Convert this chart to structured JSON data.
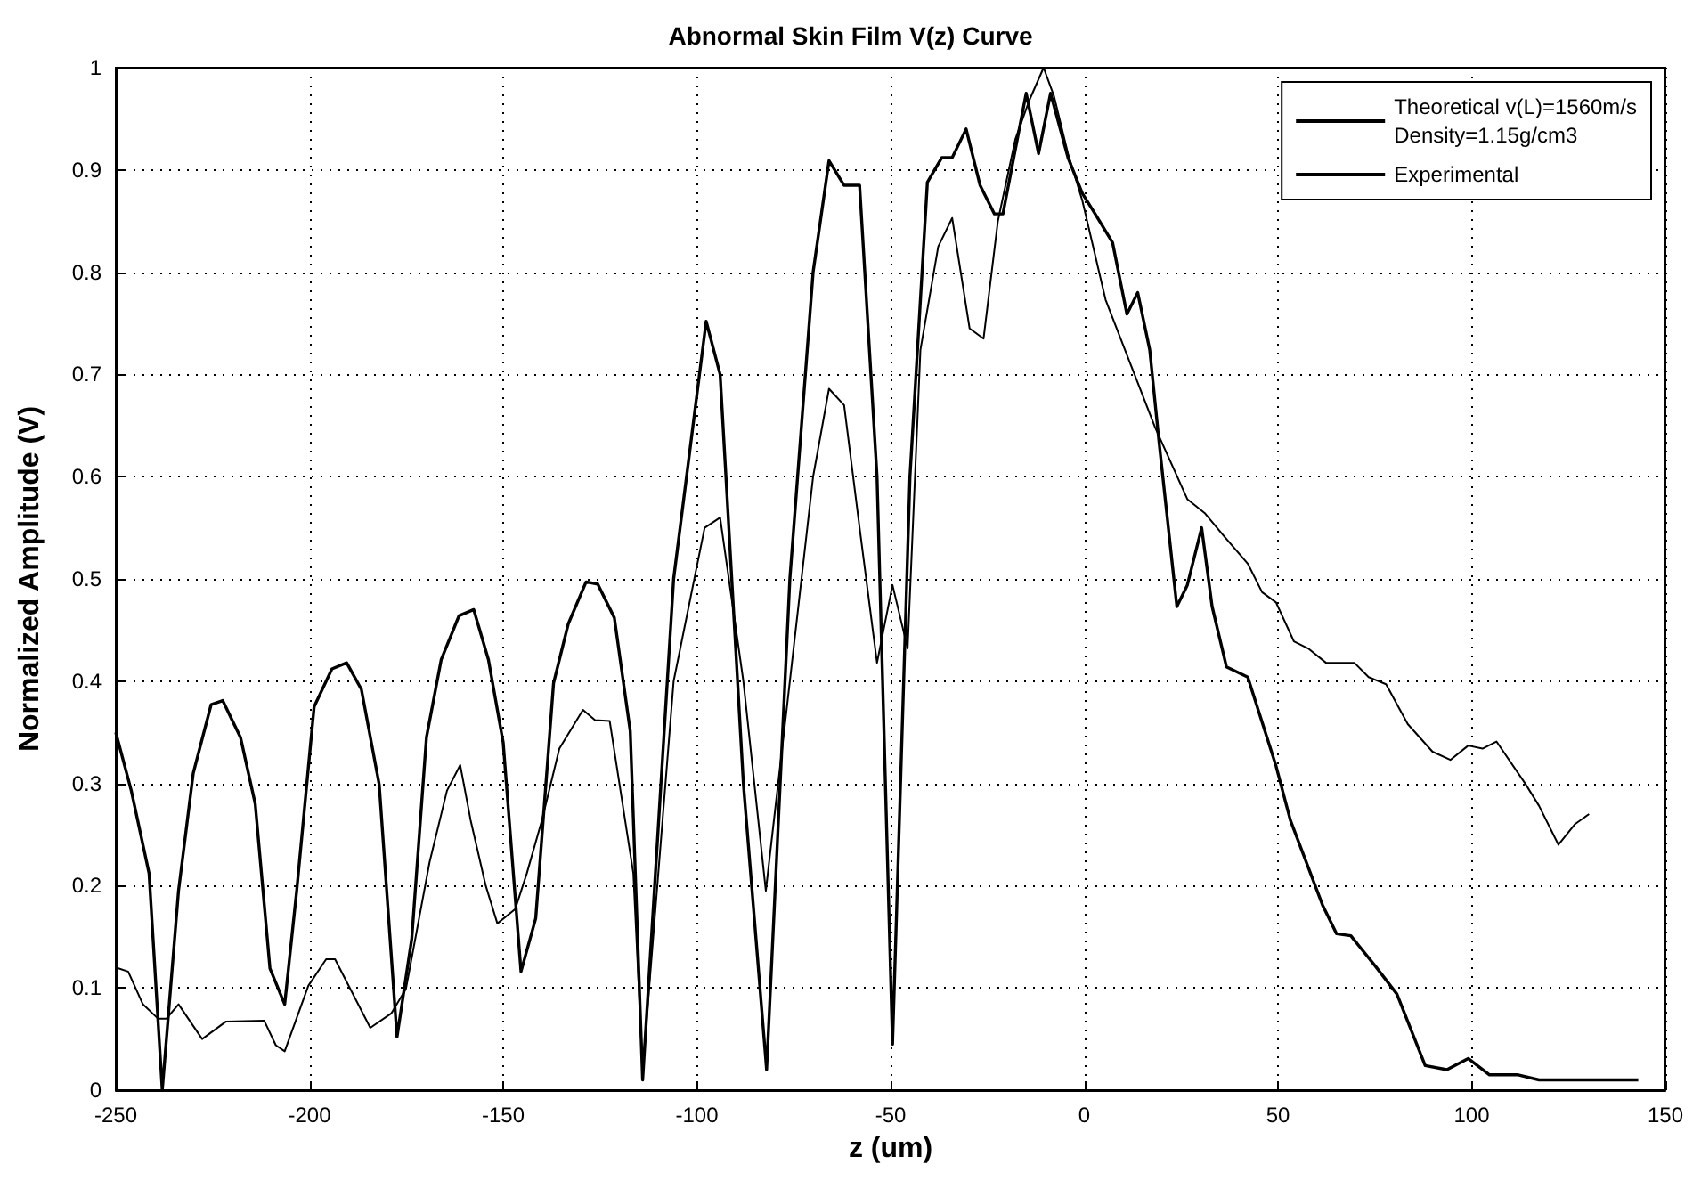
{
  "chart_data": {
    "type": "line",
    "title": "Abnormal Skin Film V(z) Curve",
    "xlabel": "z (um)",
    "ylabel": "Normalized Amplitude (V)",
    "xlim": [
      -250,
      150
    ],
    "xticks": [
      -250,
      -200,
      -150,
      -100,
      -50,
      0,
      50,
      100,
      150
    ],
    "ylim": [
      0,
      1
    ],
    "yticks": [
      0,
      0.1,
      0.2,
      0.3,
      0.4,
      0.5,
      0.6,
      0.7,
      0.8,
      0.9,
      1
    ],
    "grid": true,
    "legend": "top right",
    "marker": "none",
    "line_style": "solid",
    "series": [
      {
        "name": "Theoretical v(L)=1560m/s\nDensity=1.15g/cm3",
        "color": "#000000",
        "x": [
          -250,
          -246,
          -241.4,
          -238,
          -233.8,
          -230,
          -225.4,
          -222.4,
          -217.8,
          -214,
          -210.2,
          -206.4,
          -203.3,
          -198.8,
          -194.2,
          -190.4,
          -186.6,
          -182,
          -177.4,
          -173.6,
          -169.8,
          -166,
          -161.4,
          -157.6,
          -153.8,
          -150,
          -145.4,
          -141.6,
          -137,
          -133.2,
          -128.6,
          -125.6,
          -121.3,
          -117.2,
          -114,
          -106,
          -97.6,
          -94,
          -88,
          -82,
          -76,
          -70,
          -65.9,
          -62,
          -58,
          -53.5,
          -49.5,
          -45,
          -40.5,
          -36.8,
          -34.1,
          -30.5,
          -26.9,
          -23.2,
          -21,
          -15,
          -11.8,
          -8.7,
          -4.2,
          -0.5,
          2.8,
          7.3,
          11,
          13.8,
          16.9,
          19.3,
          23.9,
          26.6,
          30.3,
          33,
          36.7,
          42.2,
          49.5,
          53.2,
          61.5,
          65.1,
          68.8,
          75.2,
          80.7,
          88,
          93.6,
          99.1,
          104.6,
          112,
          117.4,
          123,
          143
        ],
        "values": [
          0.35,
          0.293,
          0.212,
          0.0,
          0.195,
          0.31,
          0.377,
          0.381,
          0.345,
          0.28,
          0.119,
          0.084,
          0.195,
          0.375,
          0.412,
          0.418,
          0.392,
          0.299,
          0.052,
          0.148,
          0.345,
          0.421,
          0.464,
          0.47,
          0.421,
          0.34,
          0.116,
          0.168,
          0.398,
          0.456,
          0.497,
          0.495,
          0.462,
          0.351,
          0.01,
          0.5,
          0.752,
          0.7,
          0.3,
          0.02,
          0.5,
          0.8,
          0.909,
          0.885,
          0.885,
          0.6,
          0.045,
          0.6,
          0.888,
          0.912,
          0.912,
          0.94,
          0.885,
          0.857,
          0.857,
          0.975,
          0.916,
          0.975,
          0.912,
          0.877,
          0.857,
          0.829,
          0.759,
          0.78,
          0.724,
          0.634,
          0.473,
          0.494,
          0.55,
          0.473,
          0.414,
          0.404,
          0.317,
          0.264,
          0.181,
          0.153,
          0.151,
          0.121,
          0.094,
          0.024,
          0.02,
          0.031,
          0.015,
          0.015,
          0.01,
          0.01,
          0.01
        ]
      },
      {
        "name": "Experimental",
        "color": "#000000",
        "x": [
          -250,
          -246.8,
          -243,
          -239.1,
          -236.9,
          -233.8,
          -227.7,
          -221.6,
          -211.7,
          -208.7,
          -206.4,
          -200.3,
          -195.7,
          -193.4,
          -184.3,
          -178.9,
          -175.1,
          -169,
          -164.5,
          -161.1,
          -158.4,
          -154.5,
          -151.5,
          -146.9,
          -143.9,
          -140,
          -135.5,
          -129.4,
          -126.3,
          -122.5,
          -116.4,
          -114,
          -106,
          -98,
          -94,
          -88,
          -82.2,
          -76,
          -70,
          -65.9,
          -62,
          -58,
          -53.5,
          -49.5,
          -45.6,
          -42.3,
          -37.7,
          -34.1,
          -29.6,
          -26,
          -22.3,
          -17.8,
          -14.2,
          -10.5,
          -7.8,
          -4.2,
          -0.5,
          5.5,
          18.3,
          26.6,
          31.2,
          35.8,
          42.2,
          45.9,
          49.5,
          54.1,
          57.8,
          62.4,
          69.7,
          73.4,
          77.9,
          83.5,
          89.9,
          94.5,
          99.1,
          102.8,
          106.4,
          113.8,
          117.4,
          122.4,
          126.6,
          130.3
        ],
        "values": [
          0.12,
          0.116,
          0.084,
          0.07,
          0.07,
          0.084,
          0.05,
          0.067,
          0.068,
          0.044,
          0.038,
          0.102,
          0.128,
          0.128,
          0.061,
          0.075,
          0.099,
          0.223,
          0.293,
          0.318,
          0.264,
          0.2,
          0.163,
          0.177,
          0.212,
          0.264,
          0.334,
          0.372,
          0.362,
          0.361,
          0.212,
          0.02,
          0.4,
          0.55,
          0.56,
          0.4,
          0.195,
          0.4,
          0.6,
          0.686,
          0.67,
          0.55,
          0.418,
          0.494,
          0.432,
          0.724,
          0.825,
          0.853,
          0.745,
          0.735,
          0.85,
          0.93,
          0.968,
          1.0,
          0.972,
          0.916,
          0.87,
          0.773,
          0.648,
          0.578,
          0.564,
          0.543,
          0.515,
          0.487,
          0.477,
          0.439,
          0.432,
          0.418,
          0.418,
          0.404,
          0.397,
          0.358,
          0.331,
          0.323,
          0.337,
          0.334,
          0.341,
          0.3,
          0.278,
          0.24,
          0.26,
          0.27
        ]
      }
    ]
  }
}
